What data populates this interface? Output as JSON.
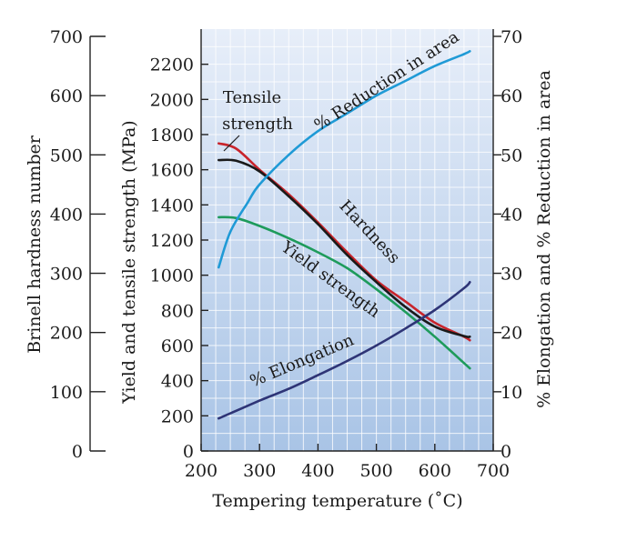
{
  "chart_data": {
    "type": "line",
    "xlabel": "Tempering temperature (˚C)",
    "xlim": [
      200,
      700
    ],
    "x_ticks": [
      200,
      300,
      400,
      500,
      600,
      700
    ],
    "grid": true,
    "axes": {
      "brinell": {
        "label": "Brinell hardness number",
        "range": [
          0,
          700
        ],
        "ticks": [
          0,
          100,
          200,
          300,
          400,
          500,
          600,
          700
        ]
      },
      "strength": {
        "label": "Yield and tensile strength (MPa)",
        "range": [
          0,
          2400
        ],
        "ticks": [
          0,
          200,
          400,
          600,
          800,
          1000,
          1200,
          1400,
          1600,
          1800,
          2000,
          2200
        ]
      },
      "percent": {
        "label": "% Elongation and % Reduction in area",
        "range": [
          0,
          70
        ],
        "ticks": [
          0,
          10,
          20,
          30,
          40,
          50,
          60,
          70
        ]
      }
    },
    "series": [
      {
        "name": "Tensile strength",
        "label_lines": [
          "Tensile",
          "strength"
        ],
        "axis": "strength",
        "color": "#c8242b",
        "x": [
          230,
          260,
          300,
          350,
          400,
          450,
          500,
          550,
          600,
          650,
          660
        ],
        "y": [
          1750,
          1720,
          1600,
          1460,
          1300,
          1130,
          970,
          850,
          730,
          650,
          630
        ]
      },
      {
        "name": "Hardness",
        "axis": "brinell",
        "color": "#1a1a1a",
        "x": [
          230,
          260,
          300,
          350,
          400,
          450,
          500,
          550,
          600,
          650,
          660
        ],
        "y": [
          491,
          490,
          472,
          430,
          383,
          331,
          285,
          243,
          210,
          194,
          193
        ]
      },
      {
        "name": "Yield strength",
        "axis": "strength",
        "color": "#1e9b5b",
        "x": [
          230,
          260,
          300,
          350,
          400,
          450,
          500,
          550,
          600,
          650,
          660
        ],
        "y": [
          1330,
          1325,
          1280,
          1210,
          1130,
          1040,
          920,
          790,
          650,
          500,
          470
        ]
      },
      {
        "name": "% Reduction in area",
        "axis": "percent",
        "color": "#1f9ad6",
        "x": [
          230,
          250,
          280,
          300,
          350,
          400,
          450,
          500,
          550,
          600,
          650,
          660
        ],
        "y": [
          31,
          37,
          42,
          45,
          50,
          54,
          57,
          60,
          62.5,
          65,
          67,
          67.5
        ]
      },
      {
        "name": "% Elongation",
        "axis": "percent",
        "color": "#2e3476",
        "x": [
          230,
          300,
          350,
          400,
          450,
          500,
          550,
          600,
          650,
          660
        ],
        "y": [
          5.5,
          8.5,
          10.5,
          12.8,
          15.2,
          17.8,
          20.7,
          23.8,
          27.5,
          28.5
        ]
      }
    ]
  }
}
